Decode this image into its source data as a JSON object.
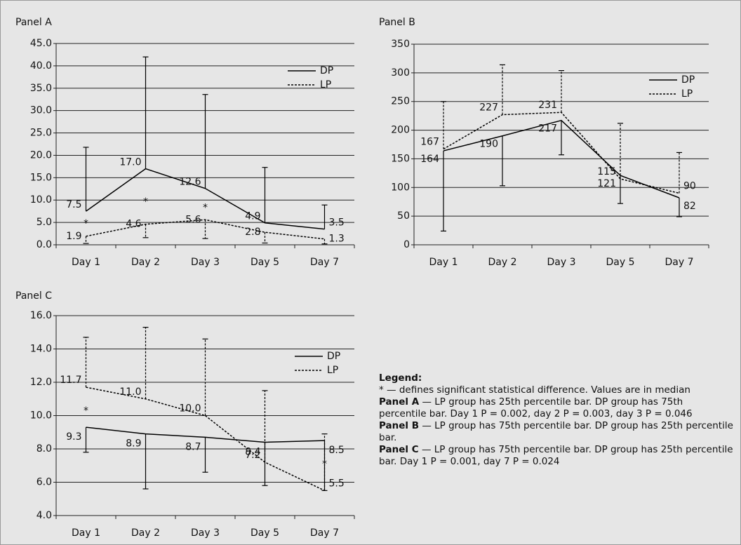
{
  "chart_data": [
    {
      "type": "line",
      "title": "Panel A",
      "categories": [
        "Day 1",
        "Day 2",
        "Day 3",
        "Day 5",
        "Day 7"
      ],
      "ylim": [
        0,
        45
      ],
      "yticks": [
        {
          "value": 0,
          "label": "0.0"
        },
        {
          "value": 5,
          "label": "5.0"
        },
        {
          "value": 10,
          "label": "10.0"
        },
        {
          "value": 15,
          "label": "15.0"
        },
        {
          "value": 20,
          "label": "20.0"
        },
        {
          "value": 25,
          "label": "25.0"
        },
        {
          "value": 30,
          "label": "30.0"
        },
        {
          "value": 35,
          "label": "35.0"
        },
        {
          "value": 40,
          "label": "40.0"
        },
        {
          "value": 45,
          "label": "45.0"
        }
      ],
      "grid": true,
      "legend": "upper right",
      "series": [
        {
          "name": "DP",
          "color": "#000000",
          "dashed": false,
          "values": [
            7.5,
            17.0,
            12.6,
            4.9,
            3.5
          ],
          "value_labels": [
            "7.5",
            "17.0",
            "12.6",
            "4.9",
            "3.5"
          ],
          "percentile_bar": [
            21.8,
            42.0,
            33.6,
            17.3,
            8.9
          ]
        },
        {
          "name": "LP",
          "color": "#000000",
          "dashed": true,
          "values": [
            1.9,
            4.6,
            5.6,
            2.8,
            1.3
          ],
          "value_labels": [
            "1.9",
            "4.6",
            "5.6",
            "2.8",
            "1.3"
          ],
          "percentile_bar": [
            0.3,
            1.6,
            1.4,
            0.4,
            0.2
          ]
        }
      ],
      "annotations": [
        {
          "text": "*",
          "category": 0,
          "y": 5.2
        },
        {
          "text": "*",
          "category": 1,
          "y": 10.0
        },
        {
          "text": "*",
          "category": 2,
          "y": 8.7
        }
      ]
    },
    {
      "type": "line",
      "title": "Panel B",
      "categories": [
        "Day 1",
        "Day 2",
        "Day 3",
        "Day 5",
        "Day 7"
      ],
      "ylim": [
        0,
        350
      ],
      "yticks": [
        0,
        50,
        100,
        150,
        200,
        250,
        300,
        350
      ],
      "grid": true,
      "legend": "upper right",
      "series": [
        {
          "name": "DP",
          "color": "#000000",
          "dashed": false,
          "values": [
            164,
            190,
            217,
            121,
            82
          ],
          "percentile_bar": [
            24,
            103,
            157,
            72,
            49
          ]
        },
        {
          "name": "LP",
          "color": "#000000",
          "dashed": true,
          "values": [
            167,
            227,
            231,
            115,
            90
          ],
          "percentile_bar": [
            250,
            314,
            304,
            212,
            161
          ]
        }
      ]
    },
    {
      "type": "line",
      "title": "Panel C",
      "categories": [
        "Day 1",
        "Day 2",
        "Day 3",
        "Day 5",
        "Day 7"
      ],
      "ylim": [
        4,
        16
      ],
      "yticks": [
        {
          "value": 4,
          "label": "4.0"
        },
        {
          "value": 6,
          "label": "6.0"
        },
        {
          "value": 8,
          "label": "8.0"
        },
        {
          "value": 10,
          "label": "10.0"
        },
        {
          "value": 12,
          "label": "12.0"
        },
        {
          "value": 14,
          "label": "14.0"
        },
        {
          "value": 16,
          "label": "16.0"
        }
      ],
      "grid": true,
      "legend": "upper right",
      "series": [
        {
          "name": "DP",
          "color": "#000000",
          "dashed": false,
          "values": [
            9.3,
            8.9,
            8.7,
            8.4,
            8.5
          ],
          "value_labels": [
            "9.3",
            "8.9",
            "8.7",
            "8.4",
            "8.5"
          ],
          "percentile_bar": [
            7.8,
            5.6,
            6.6,
            5.8,
            5.5
          ]
        },
        {
          "name": "LP",
          "color": "#000000",
          "dashed": true,
          "values": [
            11.7,
            11.0,
            10.0,
            7.2,
            5.5
          ],
          "value_labels": [
            "11.7",
            "11.0",
            "10.0",
            "7.2",
            "5.5"
          ],
          "percentile_bar": [
            14.7,
            15.3,
            14.6,
            11.5,
            8.9
          ]
        }
      ],
      "annotations": [
        {
          "text": "*",
          "category": 0,
          "y": 10.4
        },
        {
          "text": "*",
          "category": 4,
          "y": 7.2
        }
      ]
    }
  ],
  "legend_note": {
    "heading": "Legend:",
    "lines": [
      {
        "label": "",
        "text": "* — defines significant statistical difference. Values are in median"
      },
      {
        "label": "Panel A",
        "text": " — LP group has 25th percentile bar. DP group has 75th percentile bar. Day 1 P = 0.002, day 2 P = 0.003, day 3 P = 0.046"
      },
      {
        "label": "Panel B",
        "text": " — LP group has 75th percentile bar. DP group has 25th percentile bar."
      },
      {
        "label": "Panel C",
        "text": " — LP group has 75th percentile bar. DP group has 25th percentile bar. Day 1 P = 0.001, day 7 P = 0.024"
      }
    ]
  }
}
